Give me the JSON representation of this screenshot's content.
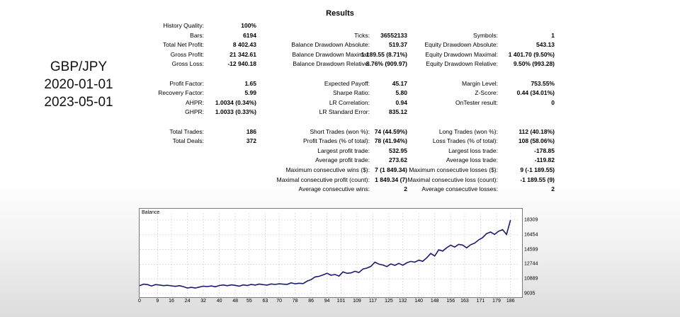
{
  "side_label": {
    "pair": "GBP/JPY",
    "start": "2020-01-01",
    "end": "2023-05-01"
  },
  "report": {
    "title": "Results",
    "col1": [
      {
        "label": "History Quality:",
        "value": "100%",
        "row": 0
      },
      {
        "label": "Bars:",
        "value": "6194",
        "row": 1
      },
      {
        "label": "Total Net Profit:",
        "value": "8 402.43",
        "row": 2
      },
      {
        "label": "Gross Profit:",
        "value": "21 342.61",
        "row": 3
      },
      {
        "label": "Gross Loss:",
        "value": "-12 940.18",
        "row": 4
      },
      {
        "label": "Profit Factor:",
        "value": "1.65",
        "row": 6
      },
      {
        "label": "Recovery Factor:",
        "value": "5.99",
        "row": 7
      },
      {
        "label": "AHPR:",
        "value": "1.0034 (0.34%)",
        "row": 8
      },
      {
        "label": "GHPR:",
        "value": "1.0033 (0.33%)",
        "row": 9
      },
      {
        "label": "Total Trades:",
        "value": "186",
        "row": 11
      },
      {
        "label": "Total Deals:",
        "value": "372",
        "row": 12
      }
    ],
    "col2": [
      {
        "label": "Ticks:",
        "value": "36552133",
        "row": 1
      },
      {
        "label": "Balance Drawdown Absolute:",
        "value": "519.37",
        "row": 2
      },
      {
        "label": "Balance Drawdown Maximal:",
        "value": "1 189.55 (8.71%)",
        "row": 3
      },
      {
        "label": "Balance Drawdown Relative:",
        "value": "8.76% (909.97)",
        "row": 4
      },
      {
        "label": "Expected Payoff:",
        "value": "45.17",
        "row": 6
      },
      {
        "label": "Sharpe Ratio:",
        "value": "5.80",
        "row": 7
      },
      {
        "label": "LR Correlation:",
        "value": "0.94",
        "row": 8
      },
      {
        "label": "LR Standard Error:",
        "value": "835.12",
        "row": 9
      },
      {
        "label": "Short Trades (won %):",
        "value": "74 (44.59%)",
        "row": 11
      },
      {
        "label": "Profit Trades (% of total):",
        "value": "78 (41.94%)",
        "row": 12
      },
      {
        "label": "Largest profit trade:",
        "value": "532.95",
        "row": 13
      },
      {
        "label": "Average profit trade:",
        "value": "273.62",
        "row": 14
      },
      {
        "label": "Maximum consecutive wins ($):",
        "value": "7 (1 849.34)",
        "row": 15
      },
      {
        "label": "Maximal consecutive profit (count):",
        "value": "1 849.34 (7)",
        "row": 16
      },
      {
        "label": "Average consecutive wins:",
        "value": "2",
        "row": 17
      }
    ],
    "col3": [
      {
        "label": "Symbols:",
        "value": "1",
        "row": 1
      },
      {
        "label": "Equity Drawdown Absolute:",
        "value": "543.13",
        "row": 2
      },
      {
        "label": "Equity Drawdown Maximal:",
        "value": "1 401.70 (9.50%)",
        "row": 3
      },
      {
        "label": "Equity Drawdown Relative:",
        "value": "9.50% (993.28)",
        "row": 4
      },
      {
        "label": "Margin Level:",
        "value": "753.55%",
        "row": 6
      },
      {
        "label": "Z-Score:",
        "value": "0.44 (34.01%)",
        "row": 7
      },
      {
        "label": "OnTester result:",
        "value": "0",
        "row": 8
      },
      {
        "label": "Long Trades (won %):",
        "value": "112 (40.18%)",
        "row": 11
      },
      {
        "label": "Loss Trades (% of total):",
        "value": "108 (58.06%)",
        "row": 12
      },
      {
        "label": "Largest loss trade:",
        "value": "-178.85",
        "row": 13
      },
      {
        "label": "Average loss trade:",
        "value": "-119.82",
        "row": 14
      },
      {
        "label": "Maximum consecutive losses ($):",
        "value": "9 (-1 189.55)",
        "row": 15
      },
      {
        "label": "Maximal consecutive loss (count):",
        "value": "-1 189.55 (9)",
        "row": 16
      },
      {
        "label": "Average consecutive losses:",
        "value": "2",
        "row": 17
      }
    ]
  },
  "chart_data": {
    "type": "line",
    "title": "Balance",
    "line_color": "#1a1a6e",
    "xlim": [
      0,
      190
    ],
    "ylim": [
      9035,
      19200
    ],
    "x_ticks": [
      0,
      9,
      16,
      24,
      32,
      40,
      48,
      55,
      63,
      70,
      78,
      86,
      94,
      101,
      109,
      117,
      125,
      132,
      140,
      148,
      156,
      163,
      171,
      179,
      186
    ],
    "y_ticks": [
      9035,
      10889,
      12744,
      14599,
      16454,
      18309
    ],
    "series": [
      {
        "x": [
          0,
          2,
          4,
          6,
          8,
          10,
          12,
          14,
          16,
          18,
          20,
          22,
          24,
          26,
          28,
          30,
          32,
          34,
          36,
          38,
          40,
          42,
          44,
          46,
          48,
          50,
          52,
          54,
          56,
          58,
          60,
          62,
          64,
          66,
          68,
          70,
          72,
          74,
          76,
          78,
          80,
          82,
          84,
          86,
          88,
          90,
          92,
          94,
          96,
          98,
          100,
          102,
          104,
          106,
          108,
          110,
          112,
          114,
          116,
          118,
          120,
          122,
          124,
          126,
          128,
          130,
          132,
          134,
          136,
          138,
          140,
          142,
          144,
          146,
          148,
          150,
          152,
          154,
          156,
          158,
          160,
          162,
          164,
          166,
          168,
          170,
          172,
          174,
          176,
          178,
          180,
          182,
          184,
          186
        ],
        "y": [
          10030,
          10230,
          10180,
          10000,
          10180,
          10120,
          10040,
          10090,
          10020,
          9950,
          10040,
          9920,
          9740,
          9830,
          9740,
          9860,
          9980,
          9930,
          10010,
          9900,
          10060,
          10130,
          10030,
          10140,
          10080,
          9980,
          10140,
          10060,
          10190,
          10110,
          10240,
          10170,
          10110,
          10260,
          10190,
          10270,
          10230,
          10200,
          10400,
          10270,
          10350,
          10300,
          10600,
          10800,
          11140,
          11220,
          11400,
          11600,
          11350,
          11450,
          11250,
          11780,
          11600,
          11650,
          11850,
          11700,
          12140,
          12250,
          12480,
          13000,
          12750,
          12650,
          12450,
          12780,
          12600,
          12850,
          12620,
          12920,
          13100,
          13000,
          13250,
          13120,
          13560,
          14100,
          13780,
          14550,
          14400,
          14820,
          15140,
          14900,
          15250,
          15150,
          14800,
          15200,
          15400,
          15800,
          16100,
          16600,
          16800,
          16500,
          16900,
          17100,
          16500,
          18309
        ]
      }
    ]
  }
}
